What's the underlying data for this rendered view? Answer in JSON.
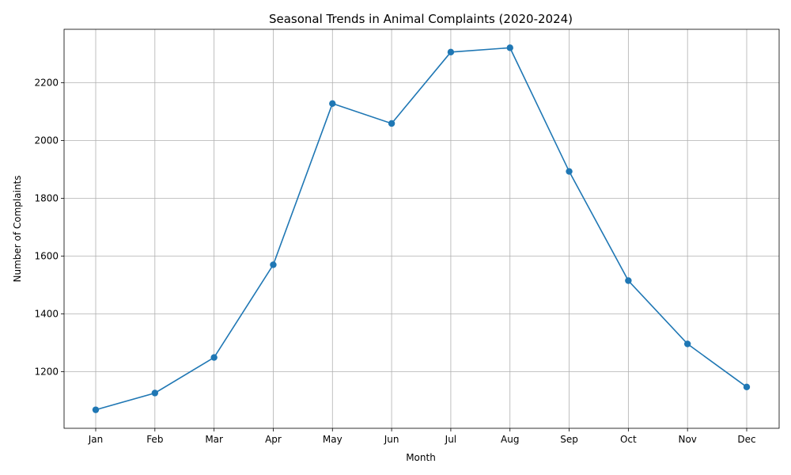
{
  "chart_data": {
    "type": "line",
    "title": "Seasonal Trends in Animal Complaints (2020-2024)",
    "xlabel": "Month",
    "ylabel": "Number of Complaints",
    "categories": [
      "Jan",
      "Feb",
      "Mar",
      "Apr",
      "May",
      "Jun",
      "Jul",
      "Aug",
      "Sep",
      "Oct",
      "Nov",
      "Dec"
    ],
    "series": [
      {
        "values": [
          1068,
          1126,
          1249,
          1570,
          2128,
          2059,
          2306,
          2321,
          1893,
          1515,
          1296,
          1147
        ]
      }
    ],
    "ylim": [
      1004,
      2385
    ],
    "yticks": [
      1200,
      1400,
      1600,
      1800,
      2000,
      2200
    ],
    "grid": true,
    "legend": "none",
    "colors": {
      "line": "#1f77b4",
      "marker": "#1f77b4"
    }
  }
}
